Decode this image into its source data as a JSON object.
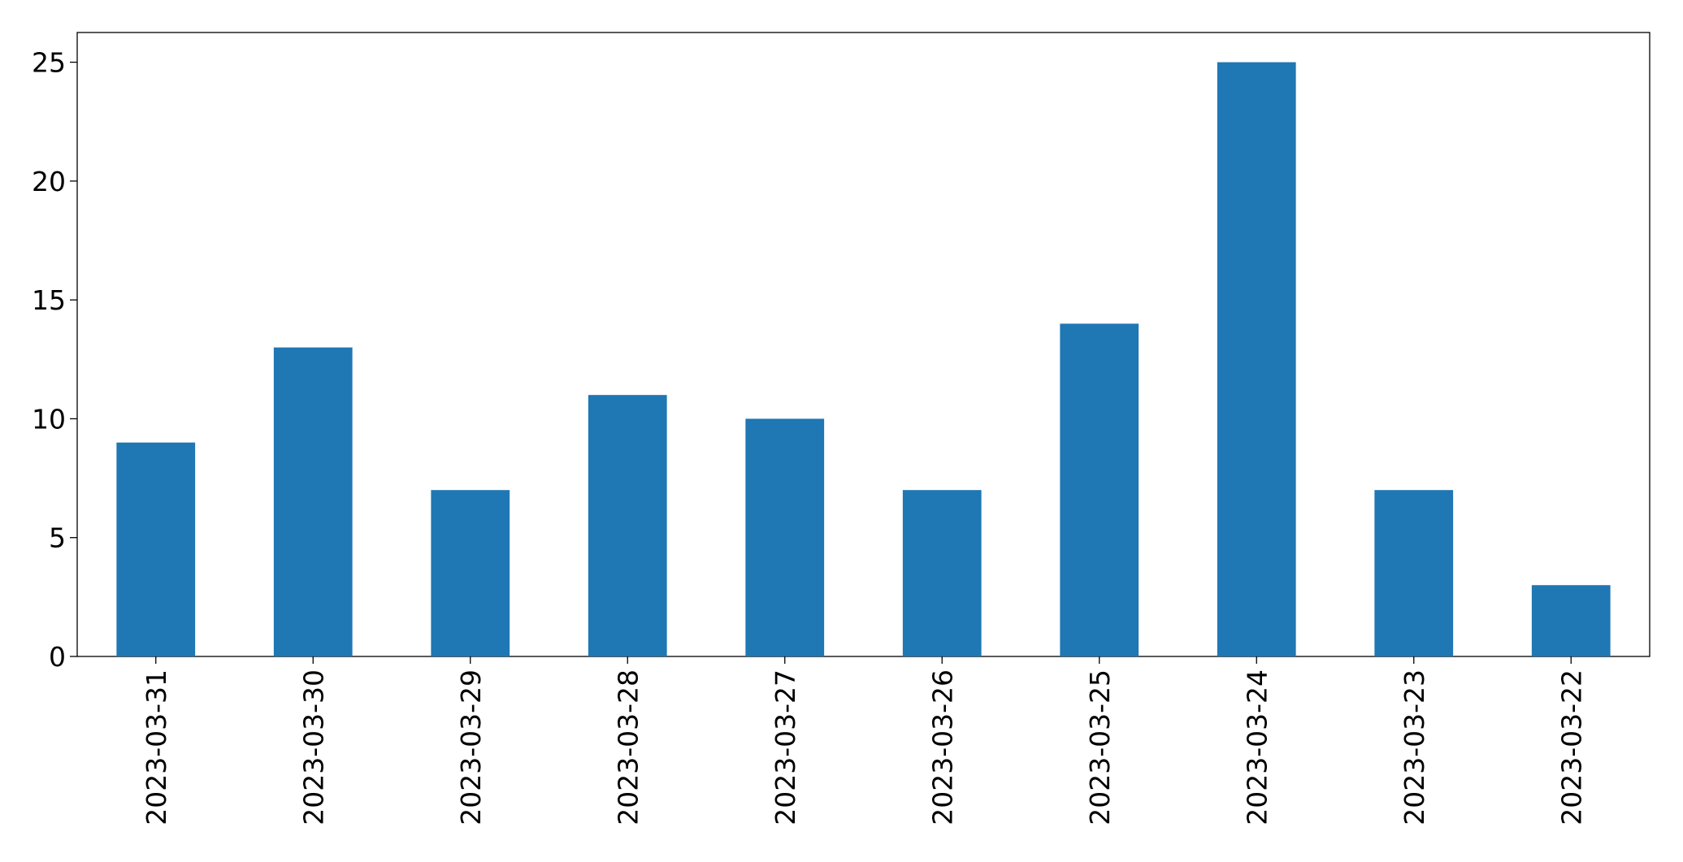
{
  "chart_data": {
    "type": "bar",
    "categories": [
      "2023-03-31",
      "2023-03-30",
      "2023-03-29",
      "2023-03-28",
      "2023-03-27",
      "2023-03-26",
      "2023-03-25",
      "2023-03-24",
      "2023-03-23",
      "2023-03-22"
    ],
    "values": [
      9,
      13,
      7,
      11,
      10,
      7,
      14,
      25,
      7,
      3
    ],
    "color": "#1f77b4",
    "ylim": [
      0,
      26.25
    ],
    "yticks": [
      0,
      5,
      10,
      15,
      20,
      25
    ],
    "grid": false
  }
}
